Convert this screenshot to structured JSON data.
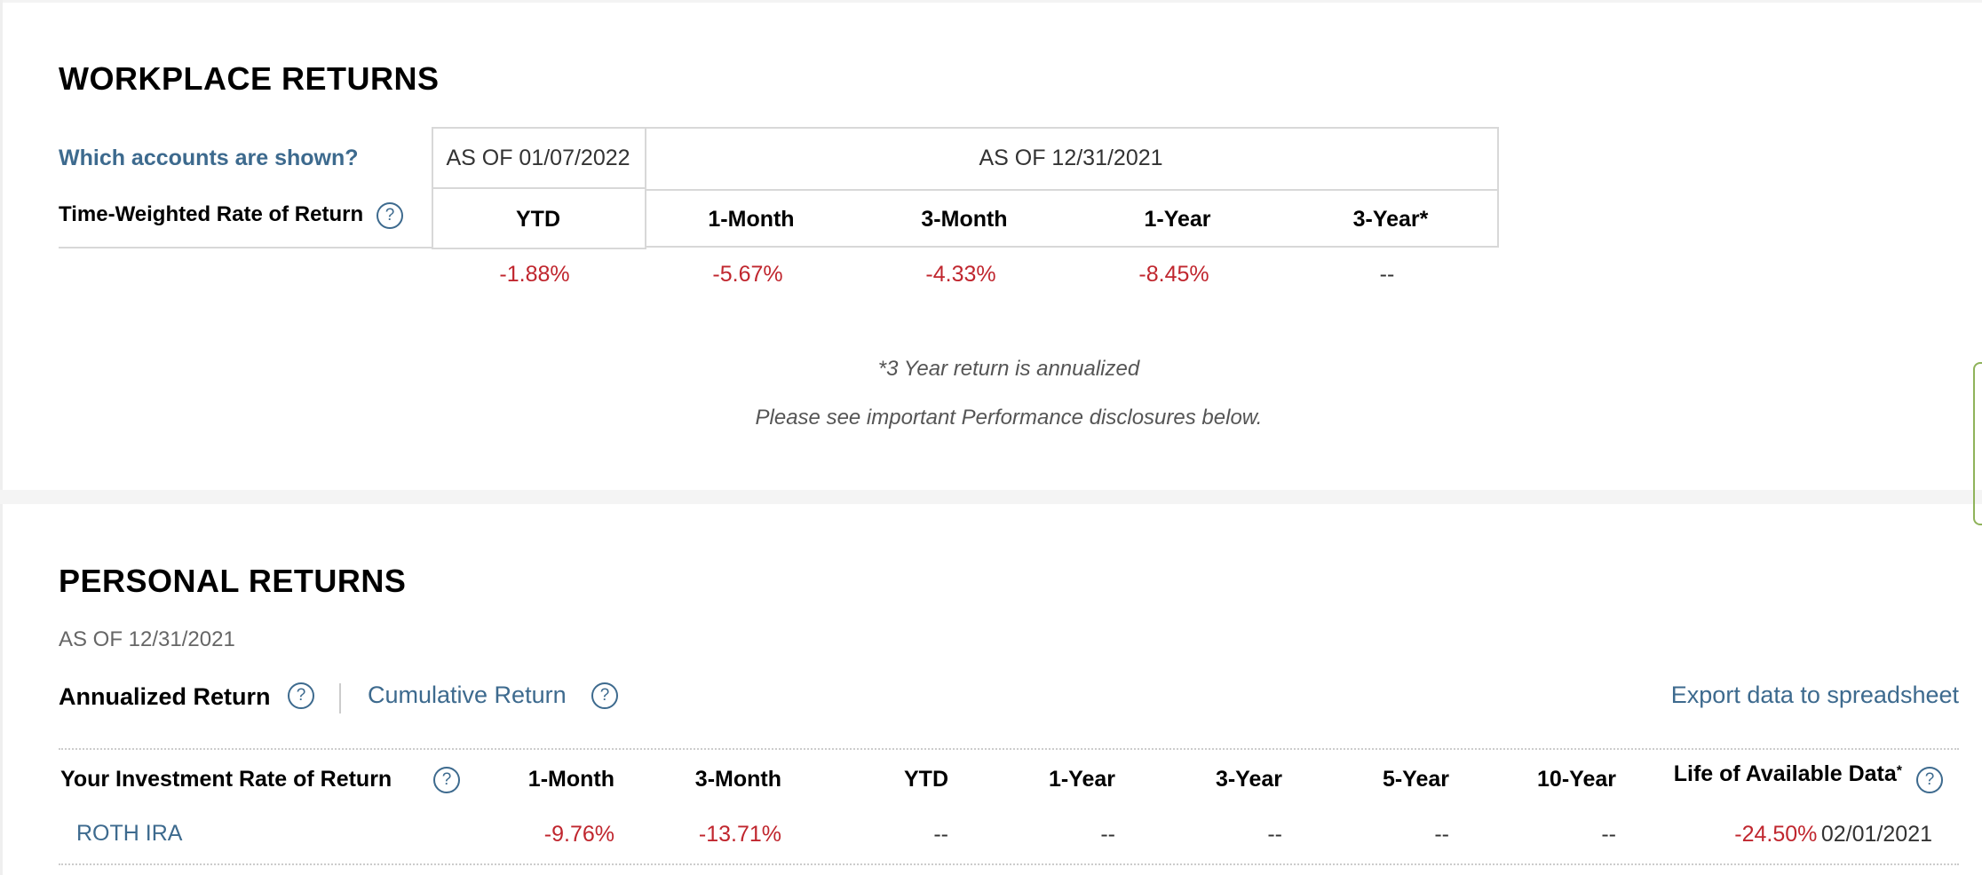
{
  "workplace": {
    "title": "WORKPLACE RETURNS",
    "which_accounts_link": "Which accounts are shown?",
    "twrr_label": "Time-Weighted Rate of Return",
    "help_glyph": "?",
    "as_of_ytd": "AS OF 01/07/2022",
    "as_of_period": "AS OF 12/31/2021",
    "columns": [
      "YTD",
      "1-Month",
      "3-Month",
      "1-Year",
      "3-Year*"
    ],
    "values": [
      "-1.88%",
      "-5.67%",
      "-4.33%",
      "-8.45%",
      "--"
    ],
    "note_annualized": "*3 Year return is annualized",
    "note_disclosures": "Please see important Performance disclosures below."
  },
  "personal": {
    "title": "PERSONAL RETURNS",
    "as_of": "AS OF 12/31/2021",
    "tab_annualized": "Annualized Return",
    "tab_cumulative": "Cumulative Return",
    "export_link": "Export data to spreadsheet",
    "table": {
      "headers": [
        "Your Investment Rate of Return",
        "1-Month",
        "3-Month",
        "YTD",
        "1-Year",
        "3-Year",
        "5-Year",
        "10-Year",
        "Life of Available Data"
      ],
      "life_asterisk": "*",
      "rows": [
        {
          "account": "ROTH IRA",
          "values": [
            "-9.76%",
            "-13.71%",
            "--",
            "--",
            "--",
            "--",
            "--"
          ],
          "life_value": "-24.50%",
          "life_date": "02/01/2021"
        }
      ]
    }
  },
  "colors": {
    "link": "#3d6a8e",
    "negative": "#c0262e",
    "border": "#d8d8d8"
  }
}
